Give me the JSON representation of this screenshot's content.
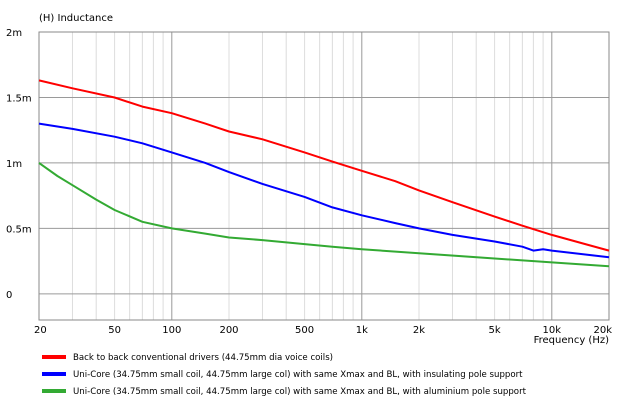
{
  "chart_data": {
    "type": "line",
    "title": "",
    "ylabel": "(H)  Inductance",
    "xlabel": "Frequency  (Hz)",
    "x_scale": "log",
    "xlim": [
      20,
      20000
    ],
    "ylim": [
      -0.0002,
      0.002
    ],
    "grid": true,
    "legend_position": "bottom-left",
    "x_ticks": [
      {
        "value": 20,
        "label": "20"
      },
      {
        "value": 50,
        "label": "50"
      },
      {
        "value": 100,
        "label": "100"
      },
      {
        "value": 200,
        "label": "200"
      },
      {
        "value": 500,
        "label": "500"
      },
      {
        "value": 1000,
        "label": "1k"
      },
      {
        "value": 2000,
        "label": "2k"
      },
      {
        "value": 5000,
        "label": "5k"
      },
      {
        "value": 10000,
        "label": "10k"
      },
      {
        "value": 20000,
        "label": "20k"
      }
    ],
    "y_ticks": [
      {
        "value": 0.002,
        "label": "2m"
      },
      {
        "value": 0.0015,
        "label": "1.5m"
      },
      {
        "value": 0.001,
        "label": "1m"
      },
      {
        "value": 0.0005,
        "label": "0.5m"
      },
      {
        "value": 0,
        "label": "0"
      }
    ],
    "series": [
      {
        "name": "Back to back conventional drivers (44.75mm dia voice coils)",
        "color": "#ff0000",
        "x": [
          20,
          30,
          50,
          70,
          100,
          150,
          200,
          300,
          500,
          700,
          1000,
          1500,
          2000,
          3000,
          5000,
          7000,
          10000,
          15000,
          20000
        ],
        "y": [
          0.00163,
          0.00157,
          0.0015,
          0.00143,
          0.00138,
          0.0013,
          0.00124,
          0.00118,
          0.00108,
          0.00101,
          0.00094,
          0.00086,
          0.00079,
          0.0007,
          0.00059,
          0.00052,
          0.00045,
          0.00038,
          0.00033
        ]
      },
      {
        "name": "Uni-Core (34.75mm small coil, 44.75mm large col) with same Xmax and BL, with insulating pole support",
        "color": "#0000ff",
        "x": [
          20,
          30,
          50,
          70,
          100,
          150,
          200,
          300,
          500,
          700,
          1000,
          1500,
          2000,
          3000,
          5000,
          7000,
          8000,
          9000,
          10000,
          15000,
          20000
        ],
        "y": [
          0.0013,
          0.00126,
          0.0012,
          0.00115,
          0.00108,
          0.001,
          0.00093,
          0.00084,
          0.00074,
          0.00066,
          0.0006,
          0.00054,
          0.0005,
          0.00045,
          0.0004,
          0.00036,
          0.00033,
          0.00034,
          0.00033,
          0.0003,
          0.00028
        ]
      },
      {
        "name": "Uni-Core (34.75mm small coil, 44.75mm large col) with same Xmax and BL, with aluminium pole support",
        "color": "#33aa33",
        "x": [
          20,
          25,
          30,
          40,
          50,
          70,
          100,
          150,
          200,
          300,
          500,
          700,
          1000,
          2000,
          5000,
          10000,
          20000
        ],
        "y": [
          0.001,
          0.0009,
          0.00083,
          0.00072,
          0.00064,
          0.00055,
          0.0005,
          0.00046,
          0.00043,
          0.00041,
          0.00038,
          0.00036,
          0.00034,
          0.00031,
          0.00027,
          0.00024,
          0.00021
        ]
      }
    ]
  }
}
